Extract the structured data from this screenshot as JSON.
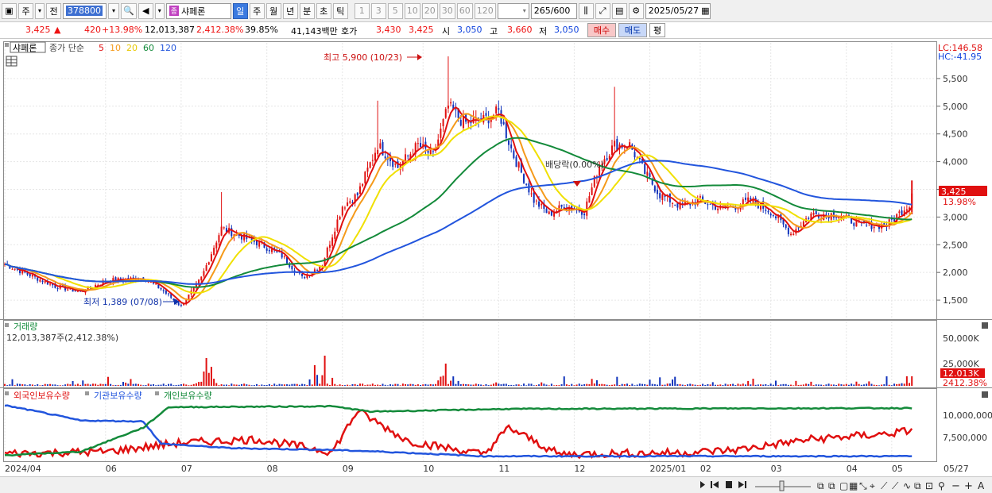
{
  "toolbar": {
    "mode1": "주",
    "mode2": "전",
    "code": "378800",
    "name": "샤페론",
    "periods": [
      "일",
      "주",
      "월",
      "년",
      "분",
      "초",
      "틱"
    ],
    "selected_period": "일",
    "intervals": [
      "1",
      "3",
      "5",
      "10",
      "20",
      "30",
      "60",
      "120"
    ],
    "count": "265",
    "count_total": "/600",
    "date": "2025/05/27"
  },
  "quote": {
    "price": "3,425",
    "change": "420",
    "change_pct": "+13.98%",
    "volume": "12,013,387",
    "volume_ratio": "2,412.38%",
    "turnover": "39.85%",
    "amount": "41,143백만",
    "ask_label": "호가",
    "ask": "3,430",
    "bid": "3,425",
    "open_label": "시",
    "open": "3,050",
    "high_label": "고",
    "high": "3,660",
    "low_label": "저",
    "low": "3,050",
    "buy": "매수",
    "sell": "매도",
    "avg": "평"
  },
  "price_panel": {
    "name_tag": "샤페론",
    "legend_prefix": "종가 단순",
    "ma_labels": [
      "5",
      "10",
      "20",
      "60",
      "120"
    ],
    "ma_colors": [
      "#e01010",
      "#f59a1a",
      "#f0e000",
      "#138a3a",
      "#2255dd"
    ],
    "lc": "LC:146.58",
    "hc": "HC:-41.95",
    "max_label": "최고 5,900 (10/23)",
    "min_label": "최저 1,389 (07/08)",
    "dividend_label": "배당락(0.00%)",
    "price_tag": "3,425",
    "pct_tag": "13.98%"
  },
  "volume_panel": {
    "title": "거래량",
    "value": "12,013,387주(2,412.38%)",
    "tag1": "12.013K",
    "tag2": "2412.38%"
  },
  "holding_panel": {
    "labels": [
      "외국인보유수량",
      "기관보유수량",
      "개인보유수량"
    ],
    "colors": [
      "#e01010",
      "#2255dd",
      "#138a3a"
    ]
  },
  "chart_data": [
    {
      "type": "candlestick",
      "title": "샤페론",
      "x": [
        "2024/04",
        "06",
        "07",
        "08",
        "09",
        "10",
        "11",
        "12",
        "2025/01",
        "02",
        "03",
        "04",
        "05",
        "05/27"
      ],
      "y_ticks": [
        1500,
        2000,
        2500,
        3000,
        3500,
        4000,
        4500,
        5000,
        5500
      ],
      "ylim": [
        1200,
        6000
      ],
      "close_points": [
        [
          0,
          2150
        ],
        [
          10,
          1950
        ],
        [
          20,
          1750
        ],
        [
          30,
          1650
        ],
        [
          40,
          1850
        ],
        [
          55,
          1900
        ],
        [
          62,
          1700
        ],
        [
          70,
          1389
        ],
        [
          78,
          1900
        ],
        [
          86,
          2800
        ],
        [
          94,
          2650
        ],
        [
          102,
          2500
        ],
        [
          110,
          2300
        ],
        [
          118,
          1900
        ],
        [
          126,
          2150
        ],
        [
          134,
          3200
        ],
        [
          140,
          3400
        ],
        [
          148,
          4300
        ],
        [
          156,
          3900
        ],
        [
          164,
          4300
        ],
        [
          170,
          4100
        ],
        [
          176,
          5000
        ],
        [
          182,
          4700
        ],
        [
          190,
          4750
        ],
        [
          196,
          4900
        ],
        [
          202,
          4100
        ],
        [
          210,
          3300
        ],
        [
          216,
          3050
        ],
        [
          222,
          3200
        ],
        [
          230,
          3100
        ],
        [
          236,
          3950
        ],
        [
          242,
          4300
        ],
        [
          248,
          4300
        ],
        [
          254,
          3800
        ],
        [
          260,
          3400
        ],
        [
          268,
          3200
        ],
        [
          276,
          3300
        ],
        [
          284,
          3150
        ],
        [
          290,
          3200
        ],
        [
          296,
          3300
        ],
        [
          304,
          3100
        ],
        [
          312,
          2700
        ],
        [
          320,
          3050
        ],
        [
          330,
          3050
        ],
        [
          340,
          2850
        ],
        [
          350,
          2850
        ],
        [
          358,
          3200
        ]
      ],
      "highlights": {
        "high": 5900,
        "high_date": "10/23",
        "low": 1389,
        "low_date": "07/08",
        "last": 3425,
        "last_pct": "13.98%"
      },
      "ma_periods": [
        5,
        10,
        20,
        60,
        120
      ]
    },
    {
      "type": "bar",
      "title": "거래량",
      "y_ticks": [
        "50,000K",
        "25,000K"
      ],
      "ylim": [
        0,
        60000000
      ],
      "last_value": 12013387,
      "peaks": [
        [
          80,
          35000000
        ],
        [
          82,
          24000000
        ],
        [
          123,
          26000000
        ],
        [
          127,
          38000000
        ],
        [
          175,
          28000000
        ],
        [
          235,
          7000000
        ],
        [
          265,
          8000000
        ],
        [
          358,
          12000000
        ]
      ]
    },
    {
      "type": "line",
      "title": "보유수량",
      "y_ticks": [
        "10,000,000",
        "7,500,000"
      ],
      "series": [
        {
          "name": "외국인보유수량",
          "points": [
            [
              0,
              5600000
            ],
            [
              40,
              5800000
            ],
            [
              70,
              6800000
            ],
            [
              100,
              7200000
            ],
            [
              130,
              5800000
            ],
            [
              140,
              10400000
            ],
            [
              160,
              7000000
            ],
            [
              190,
              5500000
            ],
            [
              200,
              8500000
            ],
            [
              220,
              5500000
            ],
            [
              240,
              5600000
            ],
            [
              270,
              5700000
            ],
            [
              290,
              6000000
            ],
            [
              320,
              7200000
            ],
            [
              350,
              7800000
            ],
            [
              365,
              8400000
            ]
          ]
        },
        {
          "name": "기관보유수량",
          "points": [
            [
              0,
              11000000
            ],
            [
              15,
              10200000
            ],
            [
              30,
              9300000
            ],
            [
              55,
              9200000
            ],
            [
              62,
              6700000
            ],
            [
              90,
              6200000
            ],
            [
              130,
              6000000
            ],
            [
              150,
              5800000
            ],
            [
              190,
              5300000
            ],
            [
              365,
              5300000
            ]
          ]
        },
        {
          "name": "개인보유수량",
          "points": [
            [
              0,
              5400000
            ],
            [
              30,
              5800000
            ],
            [
              55,
              8500000
            ],
            [
              65,
              10800000
            ],
            [
              130,
              10900000
            ],
            [
              145,
              10300000
            ],
            [
              200,
              10600000
            ],
            [
              365,
              10700000
            ]
          ]
        }
      ]
    }
  ]
}
